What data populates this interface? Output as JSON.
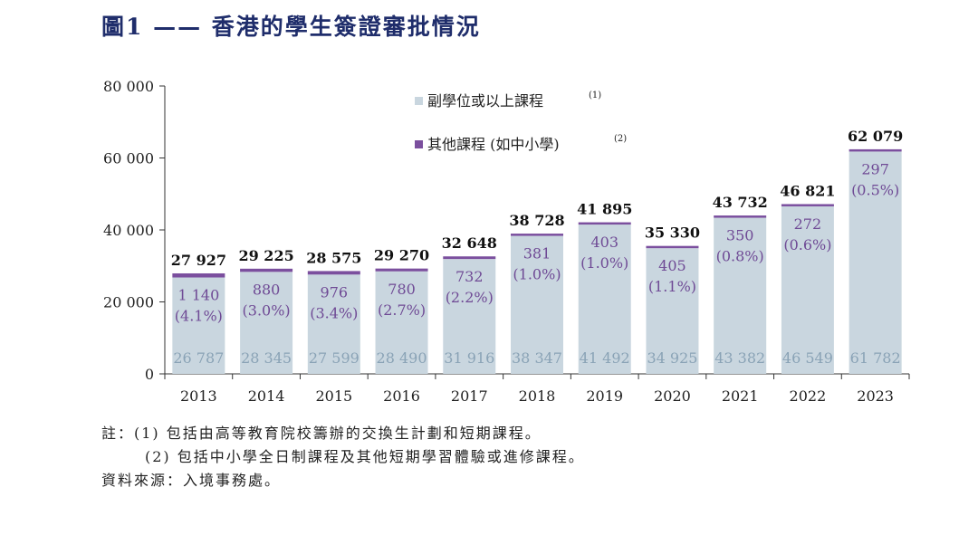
{
  "title": "圖1 —— 香港的學生簽證審批情況",
  "chart_data": {
    "type": "bar",
    "stacked": true,
    "categories": [
      "2013",
      "2014",
      "2015",
      "2016",
      "2017",
      "2018",
      "2019",
      "2020",
      "2021",
      "2022",
      "2023"
    ],
    "series": [
      {
        "name": "副學位或以上課程",
        "name_sup": "(1)",
        "color": "#c9d6df",
        "values": [
          26787,
          28345,
          27599,
          28490,
          31916,
          38347,
          41492,
          34925,
          43382,
          46549,
          61782
        ],
        "labels": [
          "26 787",
          "28 345",
          "27 599",
          "28 490",
          "31 916",
          "38 347",
          "41 492",
          "34 925",
          "43 382",
          "46 549",
          "61 782"
        ]
      },
      {
        "name": "其他課程 (如中小學)",
        "name_sup": "(2)",
        "color": "#7b4f9e",
        "values": [
          1140,
          880,
          976,
          780,
          732,
          381,
          403,
          405,
          350,
          272,
          297
        ],
        "labels": [
          "1 140",
          "880",
          "976",
          "780",
          "732",
          "381",
          "403",
          "405",
          "350",
          "272",
          "297"
        ],
        "shares": [
          "(4.1%)",
          "(3.0%)",
          "(3.4%)",
          "(2.7%)",
          "(2.2%)",
          "(1.0%)",
          "(1.0%)",
          "(1.1%)",
          "(0.8%)",
          "(0.6%)",
          "(0.5%)"
        ]
      }
    ],
    "totals": [
      "27 927",
      "29 225",
      "28 575",
      "29 270",
      "32 648",
      "38 728",
      "41 895",
      "35 330",
      "43 732",
      "46 821",
      "62 079"
    ],
    "ylim": [
      0,
      80000
    ],
    "yticks": [
      0,
      20000,
      40000,
      60000,
      80000
    ],
    "ytick_labels": [
      "0",
      "20 000",
      "40 000",
      "60 000",
      "80 000"
    ],
    "legend_position": "top-center",
    "grid": false
  },
  "notes": {
    "line1": "註：(1) 包括由高等教育院校籌辦的交換生計劃和短期課程。",
    "line2": "(2) 包括中小學全日制課程及其他短期學習體驗或進修課程。",
    "line3": "資料來源：入境事務處。"
  }
}
